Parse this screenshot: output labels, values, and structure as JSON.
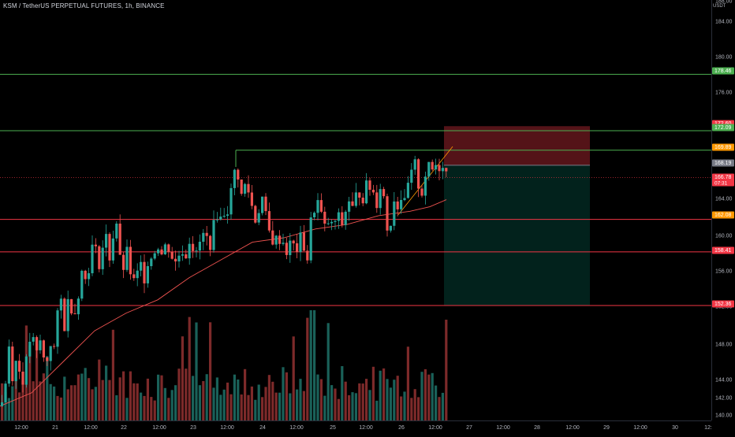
{
  "header": {
    "title": "KSM / TetherUS PERPETUAL FUTURES, 1h, BINANCE"
  },
  "price_scale": {
    "currency": "USDT",
    "ticks": [
      "184.00",
      "180.00",
      "176.00",
      "172.00",
      "168.00",
      "164.00",
      "160.00",
      "156.00",
      "152.00",
      "148.00",
      "144.00",
      "142.00",
      "140.00"
    ],
    "partial_top_label": "188.00"
  },
  "time_scale": {
    "labels": [
      "12:00",
      "21",
      "12:00",
      "22",
      "12:00",
      "23",
      "12:00",
      "24",
      "12:00",
      "25",
      "12:00",
      "26",
      "12:00",
      "27",
      "12:00",
      "28",
      "12:00",
      "29",
      "12:00",
      "30",
      "12:"
    ]
  },
  "badges": [
    {
      "label": "178.46",
      "color": "#4caf50"
    },
    {
      "label": "172.60",
      "color": "#f23645"
    },
    {
      "label": "172.09",
      "color": "#4caf50"
    },
    {
      "label": "169.89",
      "color": "#ff9800"
    },
    {
      "label": "168.19",
      "color": "#787b86"
    },
    {
      "label": "166.78",
      "color": "#f23645",
      "sub": "07:31"
    },
    {
      "label": "162.08",
      "color": "#ff9800"
    },
    {
      "label": "158.41",
      "color": "#f23645"
    },
    {
      "label": "152.36",
      "color": "#f23645"
    }
  ],
  "colors": {
    "up": "#26a69a",
    "down": "#ef5350",
    "green_line": "#4caf50",
    "red_line": "#f23645",
    "ma_line": "#ef5350"
  },
  "chart_data": {
    "type": "candlestick",
    "symbol": "KSM / TetherUS PERPETUAL FUTURES",
    "interval": "1h",
    "ylim": [
      138.5,
      188.0
    ],
    "horizontal_levels": [
      {
        "price": 178.46,
        "kind": "resistance"
      },
      {
        "price": 172.09,
        "kind": "resistance"
      },
      {
        "price": 169.89,
        "kind": "resistance"
      },
      {
        "price": 162.08,
        "kind": "support"
      },
      {
        "price": 158.41,
        "kind": "support"
      },
      {
        "price": 152.36,
        "kind": "support"
      }
    ],
    "position": {
      "type": "short",
      "stop": 172.6,
      "entry": 168.19,
      "target": 152.36
    },
    "last_price": 166.78,
    "countdown": "07:31",
    "close_path": [
      [
        0,
        141.0
      ],
      [
        6,
        144.0
      ],
      [
        10,
        148.0
      ],
      [
        14,
        144.5
      ],
      [
        20,
        146.5
      ],
      [
        26,
        143.5
      ],
      [
        32,
        146.0
      ],
      [
        38,
        149.5
      ],
      [
        44,
        146.5
      ],
      [
        50,
        148.5
      ],
      [
        56,
        145.0
      ],
      [
        62,
        148.5
      ],
      [
        66,
        146.5
      ],
      [
        70,
        150.5
      ],
      [
        76,
        153.0
      ],
      [
        80,
        150.0
      ],
      [
        86,
        153.5
      ],
      [
        92,
        151.0
      ],
      [
        98,
        154.0
      ],
      [
        104,
        157.0
      ],
      [
        108,
        154.5
      ],
      [
        112,
        157.5
      ],
      [
        118,
        160.0
      ],
      [
        122,
        156.5
      ],
      [
        128,
        158.5
      ],
      [
        132,
        161.0
      ],
      [
        136,
        157.0
      ],
      [
        140,
        159.5
      ],
      [
        146,
        162.0
      ],
      [
        150,
        157.5
      ],
      [
        156,
        156.5
      ],
      [
        160,
        158.5
      ],
      [
        164,
        156.0
      ],
      [
        170,
        154.5
      ],
      [
        176,
        157.5
      ],
      [
        180,
        155.0
      ],
      [
        186,
        157.5
      ],
      [
        192,
        158.0
      ],
      [
        198,
        159.5
      ],
      [
        204,
        158.0
      ],
      [
        210,
        159.5
      ],
      [
        216,
        158.0
      ],
      [
        222,
        157.0
      ],
      [
        228,
        159.0
      ],
      [
        234,
        158.0
      ],
      [
        240,
        160.5
      ],
      [
        246,
        157.5
      ],
      [
        252,
        159.5
      ],
      [
        258,
        160.5
      ],
      [
        264,
        159.0
      ],
      [
        270,
        161.5
      ],
      [
        276,
        163.5
      ],
      [
        280,
        161.0
      ],
      [
        284,
        164.0
      ],
      [
        288,
        163.0
      ],
      [
        292,
        165.5
      ],
      [
        296,
        167.5
      ],
      [
        298,
        168.5
      ],
      [
        302,
        166.0
      ],
      [
        306,
        164.0
      ],
      [
        310,
        166.5
      ],
      [
        314,
        165.0
      ],
      [
        318,
        163.5
      ],
      [
        322,
        162.0
      ],
      [
        326,
        163.0
      ],
      [
        330,
        165.0
      ],
      [
        336,
        162.0
      ],
      [
        340,
        160.5
      ],
      [
        346,
        159.5
      ],
      [
        352,
        160.0
      ],
      [
        358,
        159.5
      ],
      [
        362,
        158.5
      ],
      [
        368,
        159.5
      ],
      [
        374,
        158.5
      ],
      [
        380,
        160.0
      ],
      [
        384,
        159.0
      ],
      [
        388,
        157.5
      ],
      [
        392,
        161.5
      ],
      [
        396,
        163.0
      ],
      [
        400,
        164.5
      ],
      [
        406,
        162.5
      ],
      [
        410,
        161.0
      ],
      [
        416,
        162.0
      ],
      [
        420,
        161.0
      ],
      [
        426,
        162.5
      ],
      [
        432,
        161.5
      ],
      [
        438,
        163.5
      ],
      [
        442,
        164.5
      ],
      [
        446,
        163.0
      ],
      [
        452,
        165.5
      ],
      [
        458,
        164.5
      ],
      [
        464,
        166.0
      ],
      [
        470,
        165.5
      ],
      [
        476,
        164.0
      ],
      [
        482,
        166.5
      ],
      [
        486,
        164.0
      ],
      [
        490,
        160.5
      ],
      [
        494,
        162.0
      ],
      [
        498,
        164.5
      ],
      [
        504,
        163.5
      ],
      [
        508,
        165.0
      ],
      [
        512,
        163.5
      ],
      [
        516,
        166.0
      ],
      [
        520,
        167.0
      ],
      [
        524,
        168.5
      ],
      [
        528,
        166.5
      ],
      [
        532,
        164.5
      ],
      [
        536,
        166.5
      ],
      [
        540,
        168.0
      ],
      [
        546,
        167.5
      ],
      [
        550,
        168.5
      ],
      [
        554,
        167.5
      ],
      [
        558,
        169.0
      ],
      [
        562,
        168.0
      ],
      [
        566,
        166.8
      ]
    ],
    "moving_average_path": [
      [
        0,
        141.0
      ],
      [
        40,
        142.5
      ],
      [
        80,
        146.0
      ],
      [
        120,
        149.5
      ],
      [
        160,
        151.5
      ],
      [
        200,
        153.0
      ],
      [
        240,
        155.5
      ],
      [
        280,
        157.5
      ],
      [
        320,
        159.5
      ],
      [
        360,
        160.0
      ],
      [
        400,
        161.0
      ],
      [
        440,
        161.5
      ],
      [
        480,
        162.5
      ],
      [
        520,
        163.0
      ],
      [
        545,
        163.5
      ],
      [
        566,
        164.3
      ]
    ]
  }
}
